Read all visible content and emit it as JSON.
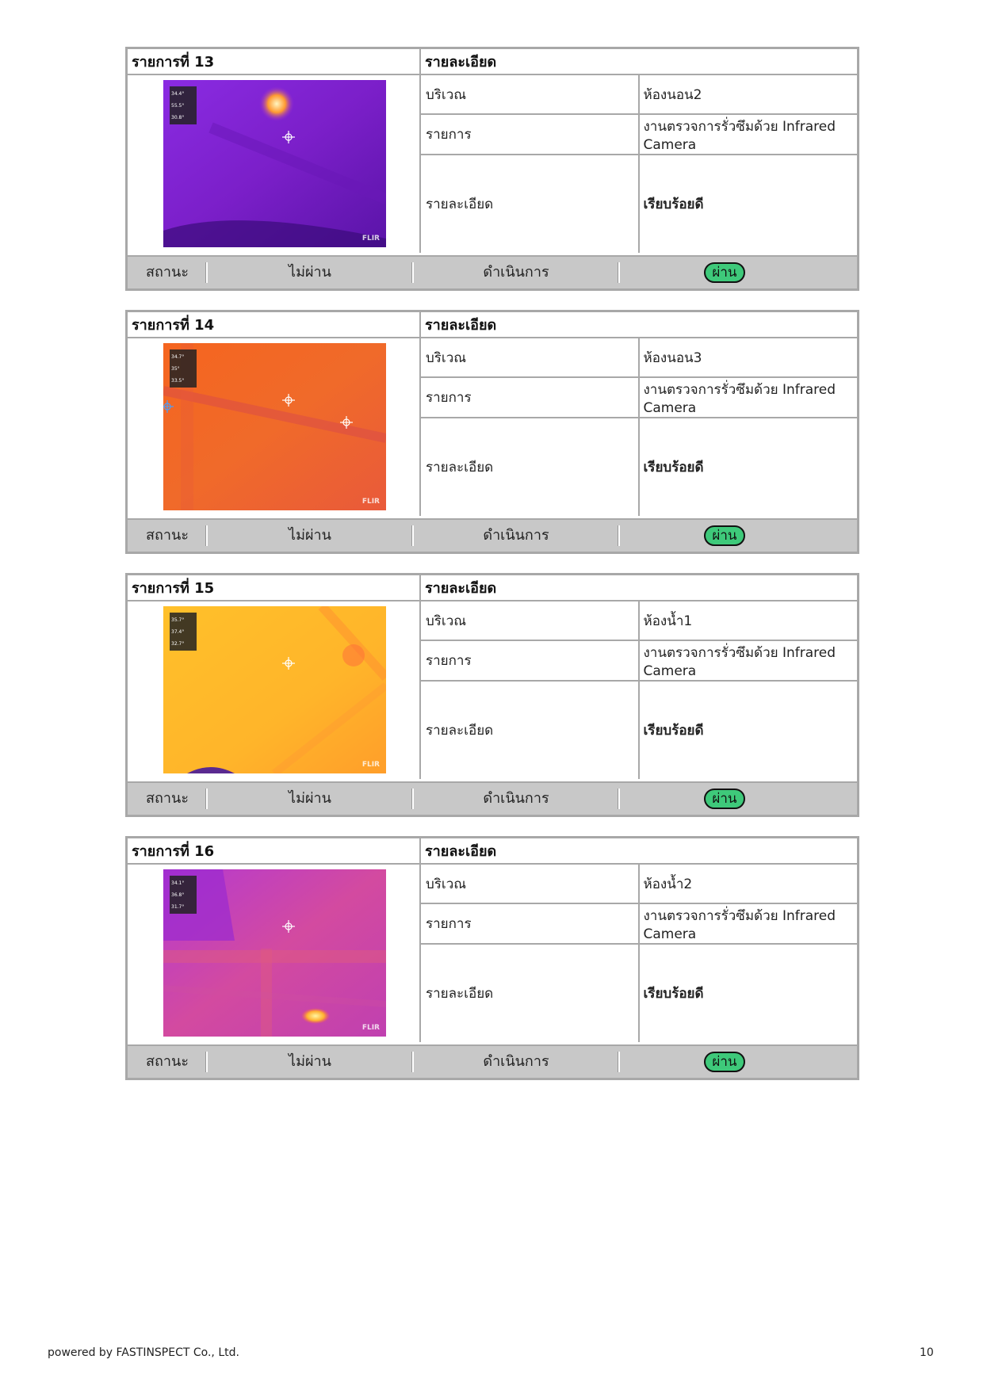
{
  "columns": {
    "detail_header": "รายละเอียด",
    "area_label": "บริเวณ",
    "item_label": "รายการ",
    "detail_label": "รายละเอียด"
  },
  "status": {
    "label": "สถานะ",
    "fail": "ไม่ผ่าน",
    "in_progress": "ดำเนินการ",
    "pass": "ผ่าน"
  },
  "colors": {
    "pass_badge": "#3ec97a",
    "border": "#a8a8a8",
    "status_bar": "#c8c8c8"
  },
  "items": [
    {
      "title": "รายการที่ 13",
      "area": "ห้องนอน2",
      "item": "งานตรวจการรั่วซึมด้วย Infrared Camera",
      "detail": "เรียบร้อยดี",
      "thermal_palette": "purple",
      "thermal_readings": [
        "34.4°",
        "55.5°",
        "30.8°"
      ],
      "thermal_brand": "FLIR",
      "selected_status": "pass"
    },
    {
      "title": "รายการที่ 14",
      "area": "ห้องนอน3",
      "item": "งานตรวจการรั่วซึมด้วย Infrared Camera",
      "detail": "เรียบร้อยดี",
      "thermal_palette": "orange",
      "thermal_readings": [
        "34.7°",
        "35°",
        "33.5°"
      ],
      "thermal_brand": "FLIR",
      "selected_status": "pass"
    },
    {
      "title": "รายการที่ 15",
      "area": "ห้องน้ำ1",
      "item": "งานตรวจการรั่วซึมด้วย Infrared Camera",
      "detail": "เรียบร้อยดี",
      "thermal_palette": "yellow",
      "thermal_readings": [
        "35.7°",
        "37.4°",
        "32.7°"
      ],
      "thermal_brand": "FLIR",
      "selected_status": "pass"
    },
    {
      "title": "รายการที่ 16",
      "area": "ห้องน้ำ2",
      "item": "งานตรวจการรั่วซึมด้วย Infrared Camera",
      "detail": "เรียบร้อยดี",
      "thermal_palette": "magenta",
      "thermal_readings": [
        "34.1°",
        "36.8°",
        "31.7°"
      ],
      "thermal_brand": "FLIR",
      "selected_status": "pass"
    }
  ],
  "footer": {
    "powered_by": "powered by FASTINSPECT Co., Ltd.",
    "page_number": "10"
  }
}
